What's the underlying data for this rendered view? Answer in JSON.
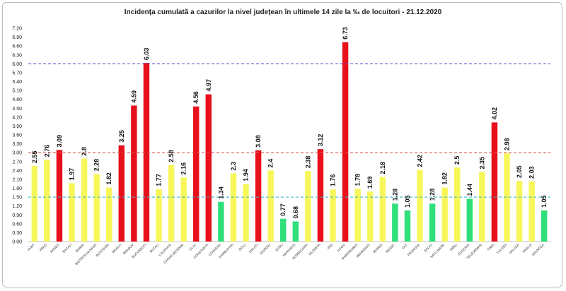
{
  "chart_data": {
    "type": "bar",
    "title": "Incidența cumulată a cazurilor la nivel județean în ultimele 14 zile la ‰ de locuitori - 21.12.2020",
    "xlabel": "",
    "ylabel": "",
    "ylim": [
      0,
      7.2
    ],
    "yticks": [
      "0.00",
      "0.30",
      "0.60",
      "0.90",
      "1.20",
      "1.50",
      "1.80",
      "2.10",
      "2.40",
      "2.70",
      "3.00",
      "3.30",
      "3.60",
      "3.90",
      "4.20",
      "4.50",
      "4.80",
      "5.10",
      "5.40",
      "5.70",
      "6.00",
      "6.30",
      "6.60",
      "6.90",
      "7.20"
    ],
    "categories": [
      "ALBA",
      "ARAD",
      "ARGES",
      "BACAU",
      "BIHOR",
      "BISTRITA NASAUD",
      "BOTOSANI",
      "BRAILA",
      "BRASOV",
      "BUCURESTI",
      "BUZAU",
      "CALARASI",
      "CARAS-SEVERIN",
      "CLUJ",
      "CONSTANTA",
      "COVASNA",
      "DAMBOVITA",
      "DOLJ",
      "GALATI",
      "GIURGIU",
      "GORJ",
      "HARGHITA",
      "HUNEDOARA",
      "IALOMITA",
      "IASI",
      "ILFOV",
      "MARAMURES",
      "MEHEDINTI",
      "MURES",
      "NEAMT",
      "OLT",
      "PRAHOVA",
      "SALAJ",
      "SATU MARE",
      "SIBIU",
      "SUCEAVA",
      "TELEORMAN",
      "TIMIS",
      "TULCEA",
      "VALCEA",
      "VASLUI",
      "VRANCEA"
    ],
    "values": [
      2.55,
      2.76,
      3.09,
      1.97,
      2.8,
      2.28,
      1.82,
      3.25,
      4.59,
      6.03,
      1.77,
      2.58,
      2.16,
      4.56,
      4.97,
      1.34,
      2.3,
      1.94,
      3.08,
      2.4,
      0.77,
      0.68,
      2.38,
      3.12,
      1.76,
      6.73,
      1.78,
      1.69,
      2.18,
      1.28,
      1.05,
      2.42,
      1.28,
      1.82,
      2.5,
      1.44,
      2.35,
      4.02,
      2.98,
      2.05,
      2.03,
      1.05
    ],
    "value_labels": [
      "2.55",
      "2.76",
      "3.09",
      "1.97",
      "2.8",
      "2.28",
      "1.82",
      "3.25",
      "4.59",
      "6.03",
      "1.77",
      "2.58",
      "2.16",
      "4.56",
      "4.97",
      "1.34",
      "2.3",
      "1.94",
      "3.08",
      "2.4",
      "0.77",
      "0.68",
      "2.38",
      "3.12",
      "1.76",
      "6.73",
      "1.78",
      "1.69",
      "2.18",
      "1.28",
      "1.05",
      "2.42",
      "1.28",
      "1.82",
      "2.5",
      "1.44",
      "2.35",
      "4.02",
      "2.98",
      "2.05",
      "2.03",
      "1.05"
    ],
    "bar_colors": [
      "yellow",
      "yellow",
      "red",
      "yellow",
      "yellow",
      "yellow",
      "yellow",
      "red",
      "red",
      "red",
      "yellow",
      "yellow",
      "yellow",
      "red",
      "red",
      "green",
      "yellow",
      "yellow",
      "red",
      "yellow",
      "green",
      "green",
      "yellow",
      "red",
      "yellow",
      "red",
      "yellow",
      "yellow",
      "yellow",
      "green",
      "green",
      "yellow",
      "green",
      "yellow",
      "yellow",
      "green",
      "yellow",
      "red",
      "yellow",
      "yellow",
      "yellow",
      "green"
    ],
    "thresholds": [
      {
        "value": 6.0,
        "color": "#5b4fcf"
      },
      {
        "value": 3.0,
        "color": "#d9534f"
      },
      {
        "value": 1.5,
        "color": "#3fb8c9"
      }
    ],
    "colors": {
      "red": "#e8101a",
      "yellow": "#f7f75a",
      "green": "#2fe07a"
    },
    "grid": false,
    "legend": "none"
  }
}
